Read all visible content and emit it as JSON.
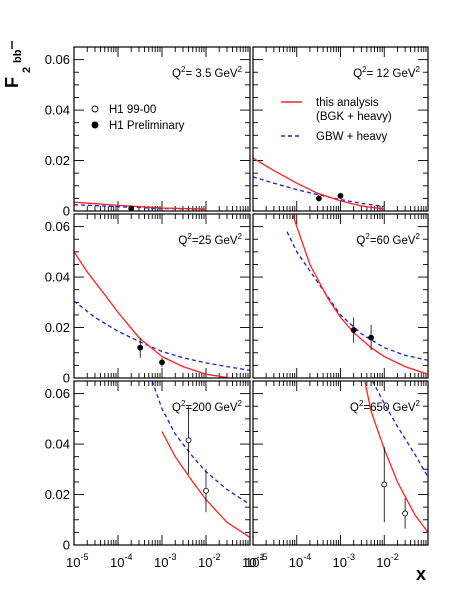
{
  "chart_data": {
    "type": "line",
    "ylabel": "F",
    "ylabel_sub": "2",
    "ylabel_sup": "bb",
    "xlabel": "x",
    "x_scale": "log",
    "xlim": [
      1e-05,
      0.1
    ],
    "ylim": [
      0,
      0.065
    ],
    "y_ticks": [
      "0",
      "0.02",
      "0.04",
      "0.06"
    ],
    "x_ticks": [
      {
        "base": "10",
        "exp": "-5"
      },
      {
        "base": "10",
        "exp": "-4"
      },
      {
        "base": "10",
        "exp": "-3"
      },
      {
        "base": "10",
        "exp": "-2"
      },
      {
        "base": "10",
        "exp": "-1"
      }
    ],
    "legend": {
      "points": [
        {
          "label": "H1 99-00",
          "marker": "open-circle"
        },
        {
          "label": "H1 Preliminary",
          "marker": "filled-circle"
        }
      ],
      "lines": [
        {
          "label": "this analysis",
          "label2": "(BGK + heavy)",
          "color": "#ff2020",
          "style": "solid"
        },
        {
          "label": "GBW + heavy",
          "color": "#1e1ed8",
          "style": "dashed"
        }
      ]
    },
    "panels": [
      {
        "label_pre": "Q",
        "label_sup": "2",
        "label_post": "= 3.5 GeV",
        "label_sup2": "2",
        "bgk": [
          [
            1e-05,
            0.0035
          ],
          [
            0.0001,
            0.0022
          ],
          [
            0.001,
            0.0012
          ],
          [
            0.01,
            0.0008
          ]
        ],
        "gbw": [
          [
            1e-05,
            0.0025
          ],
          [
            0.0001,
            0.0017
          ],
          [
            0.001,
            0.001
          ],
          [
            0.01,
            0.0007
          ]
        ],
        "points_filled": [
          {
            "x": 0.0002,
            "y": 0.001,
            "err": 0.0003
          }
        ],
        "points_open": []
      },
      {
        "label_pre": "Q",
        "label_sup": "2",
        "label_post": "= 12 GeV",
        "label_sup2": "2",
        "bgk": [
          [
            1e-05,
            0.021
          ],
          [
            3e-05,
            0.016
          ],
          [
            0.0001,
            0.011
          ],
          [
            0.0003,
            0.007
          ],
          [
            0.001,
            0.004
          ],
          [
            0.003,
            0.002
          ],
          [
            0.01,
            0.0008
          ]
        ],
        "gbw": [
          [
            1e-05,
            0.0135
          ],
          [
            3e-05,
            0.011
          ],
          [
            0.0001,
            0.0085
          ],
          [
            0.0003,
            0.0065
          ],
          [
            0.001,
            0.0045
          ],
          [
            0.003,
            0.003
          ],
          [
            0.01,
            0.0018
          ]
        ],
        "points_filled": [
          {
            "x": 0.00032,
            "y": 0.005,
            "err": 0.0012
          },
          {
            "x": 0.001,
            "y": 0.006,
            "err": 0.0012
          }
        ],
        "points_open": []
      },
      {
        "label_pre": "Q",
        "label_sup": "2",
        "label_post": "=25 GeV",
        "label_sup2": "2",
        "bgk": [
          [
            1e-05,
            0.05
          ],
          [
            2e-05,
            0.042
          ],
          [
            5e-05,
            0.033
          ],
          [
            0.0001,
            0.026
          ],
          [
            0.0003,
            0.016
          ],
          [
            0.001,
            0.0085
          ],
          [
            0.003,
            0.0045
          ],
          [
            0.01,
            0.0015
          ],
          [
            0.03,
            0.0002
          ]
        ],
        "gbw": [
          [
            1e-05,
            0.0305
          ],
          [
            3e-05,
            0.024
          ],
          [
            0.0001,
            0.0185
          ],
          [
            0.0003,
            0.0145
          ],
          [
            0.001,
            0.0105
          ],
          [
            0.003,
            0.008
          ],
          [
            0.01,
            0.006
          ],
          [
            0.03,
            0.0045
          ],
          [
            0.1,
            0.003
          ]
        ],
        "points_filled": [
          {
            "x": 0.00032,
            "y": 0.012,
            "err": 0.004
          },
          {
            "x": 0.001,
            "y": 0.0062,
            "err": 0.0018
          }
        ],
        "points_open": []
      },
      {
        "label_pre": "Q",
        "label_sup": "2",
        "label_post": "=60 GeV",
        "label_sup2": "2",
        "bgk": [
          [
            8e-05,
            0.065
          ],
          [
            0.0002,
            0.045
          ],
          [
            0.0005,
            0.032
          ],
          [
            0.001,
            0.024
          ],
          [
            0.002,
            0.018
          ],
          [
            0.005,
            0.012
          ],
          [
            0.01,
            0.0085
          ],
          [
            0.03,
            0.0045
          ],
          [
            0.1,
            0.0015
          ]
        ],
        "gbw": [
          [
            6e-05,
            0.058
          ],
          [
            0.0001,
            0.05
          ],
          [
            0.0003,
            0.038
          ],
          [
            0.001,
            0.025
          ],
          [
            0.003,
            0.0175
          ],
          [
            0.01,
            0.012
          ],
          [
            0.03,
            0.009
          ],
          [
            0.1,
            0.007
          ]
        ],
        "points_filled": [
          {
            "x": 0.002,
            "y": 0.019,
            "err": 0.005
          },
          {
            "x": 0.005,
            "y": 0.016,
            "err": 0.005
          }
        ],
        "points_open": []
      },
      {
        "label_pre": "Q",
        "label_sup": "2",
        "label_post": "=200 GeV",
        "label_sup2": "2",
        "bgk": [
          [
            0.001,
            0.045
          ],
          [
            0.002,
            0.035
          ],
          [
            0.005,
            0.025
          ],
          [
            0.01,
            0.018
          ],
          [
            0.03,
            0.009
          ],
          [
            0.1,
            0.003
          ]
        ],
        "gbw": [
          [
            0.0006,
            0.065
          ],
          [
            0.001,
            0.054
          ],
          [
            0.002,
            0.044
          ],
          [
            0.005,
            0.035
          ],
          [
            0.01,
            0.029
          ],
          [
            0.03,
            0.022
          ],
          [
            0.1,
            0.016
          ]
        ],
        "points_filled": [],
        "points_open": [
          {
            "x": 0.004,
            "y": 0.0415,
            "err": 0.0135
          },
          {
            "x": 0.01,
            "y": 0.0215,
            "err": 0.0085
          }
        ]
      },
      {
        "label_pre": "Q",
        "label_sup": "2",
        "label_post": "=650 GeV",
        "label_sup2": "2",
        "bgk": [
          [
            0.0036,
            0.065
          ],
          [
            0.005,
            0.053
          ],
          [
            0.01,
            0.038
          ],
          [
            0.02,
            0.025
          ],
          [
            0.05,
            0.012
          ],
          [
            0.1,
            0.005
          ]
        ],
        "gbw": [
          [
            0.0054,
            0.065
          ],
          [
            0.01,
            0.056
          ],
          [
            0.02,
            0.047
          ],
          [
            0.05,
            0.036
          ],
          [
            0.1,
            0.027
          ]
        ],
        "points_filled": [],
        "points_open": [
          {
            "x": 0.01,
            "y": 0.024,
            "err": 0.015
          },
          {
            "x": 0.03,
            "y": 0.0125,
            "err": 0.006
          }
        ]
      }
    ]
  }
}
